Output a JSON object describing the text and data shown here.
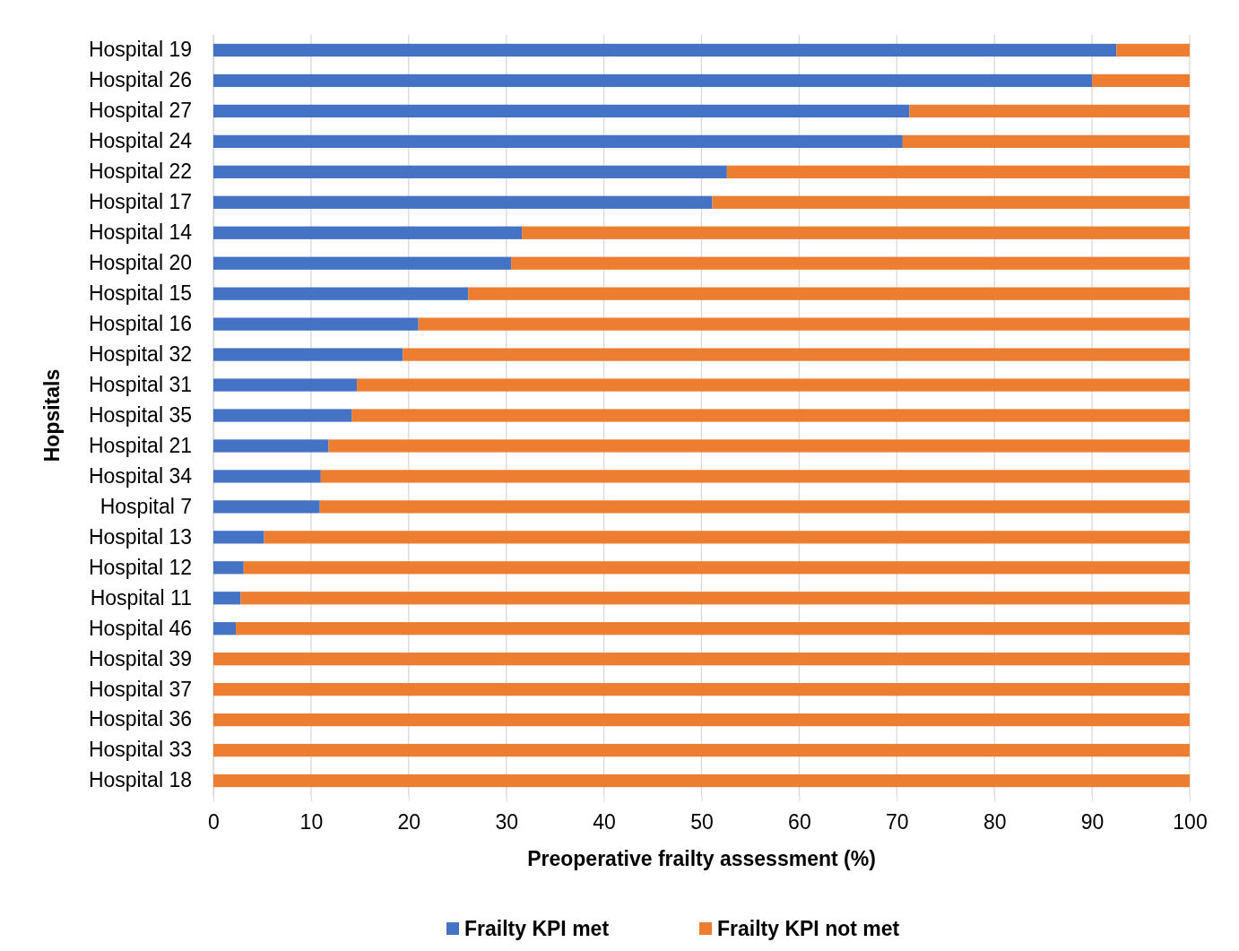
{
  "chart_data": {
    "type": "bar",
    "orientation": "horizontal",
    "stacked": true,
    "xlabel": "Preoperative frailty assessment (%)",
    "ylabel": "Hopsitals",
    "categories": [
      "Hospital 19",
      "Hospital 26",
      "Hospital 27",
      "Hospital 24",
      "Hospital 22",
      "Hospital 17",
      "Hospital 14",
      "Hospital 20",
      "Hospital 15",
      "Hospital 16",
      "Hospital 32",
      "Hospital 31",
      "Hospital 35",
      "Hospital 21",
      "Hospital 34",
      "Hospital 7",
      "Hospital 13",
      "Hospital 12",
      "Hospital 11",
      "Hospital 46",
      "Hospital 39",
      "Hospital 37",
      "Hospital 36",
      "Hospital 33",
      "Hospital 18"
    ],
    "series": [
      {
        "name": "Frailty KPI met",
        "color": "#4472c4",
        "values": [
          92.5,
          90.0,
          71.3,
          70.6,
          52.6,
          51.1,
          31.6,
          30.5,
          26.1,
          21.0,
          19.4,
          14.7,
          14.2,
          11.8,
          11.0,
          10.9,
          5.2,
          3.1,
          2.8,
          2.3,
          0,
          0,
          0,
          0,
          0
        ]
      },
      {
        "name": "Frailty KPI not met",
        "color": "#ed7d31",
        "values": [
          7.5,
          10.0,
          28.7,
          29.4,
          47.4,
          48.9,
          68.4,
          69.5,
          73.9,
          79.0,
          80.6,
          85.3,
          85.8,
          88.2,
          89.0,
          89.1,
          94.8,
          96.9,
          97.2,
          97.7,
          100,
          100,
          100,
          100,
          100
        ]
      }
    ],
    "xlim": [
      0,
      100
    ],
    "xticks": [
      0,
      10,
      20,
      30,
      40,
      50,
      60,
      70,
      80,
      90,
      100
    ],
    "grid": "x",
    "legend": "bottom"
  }
}
